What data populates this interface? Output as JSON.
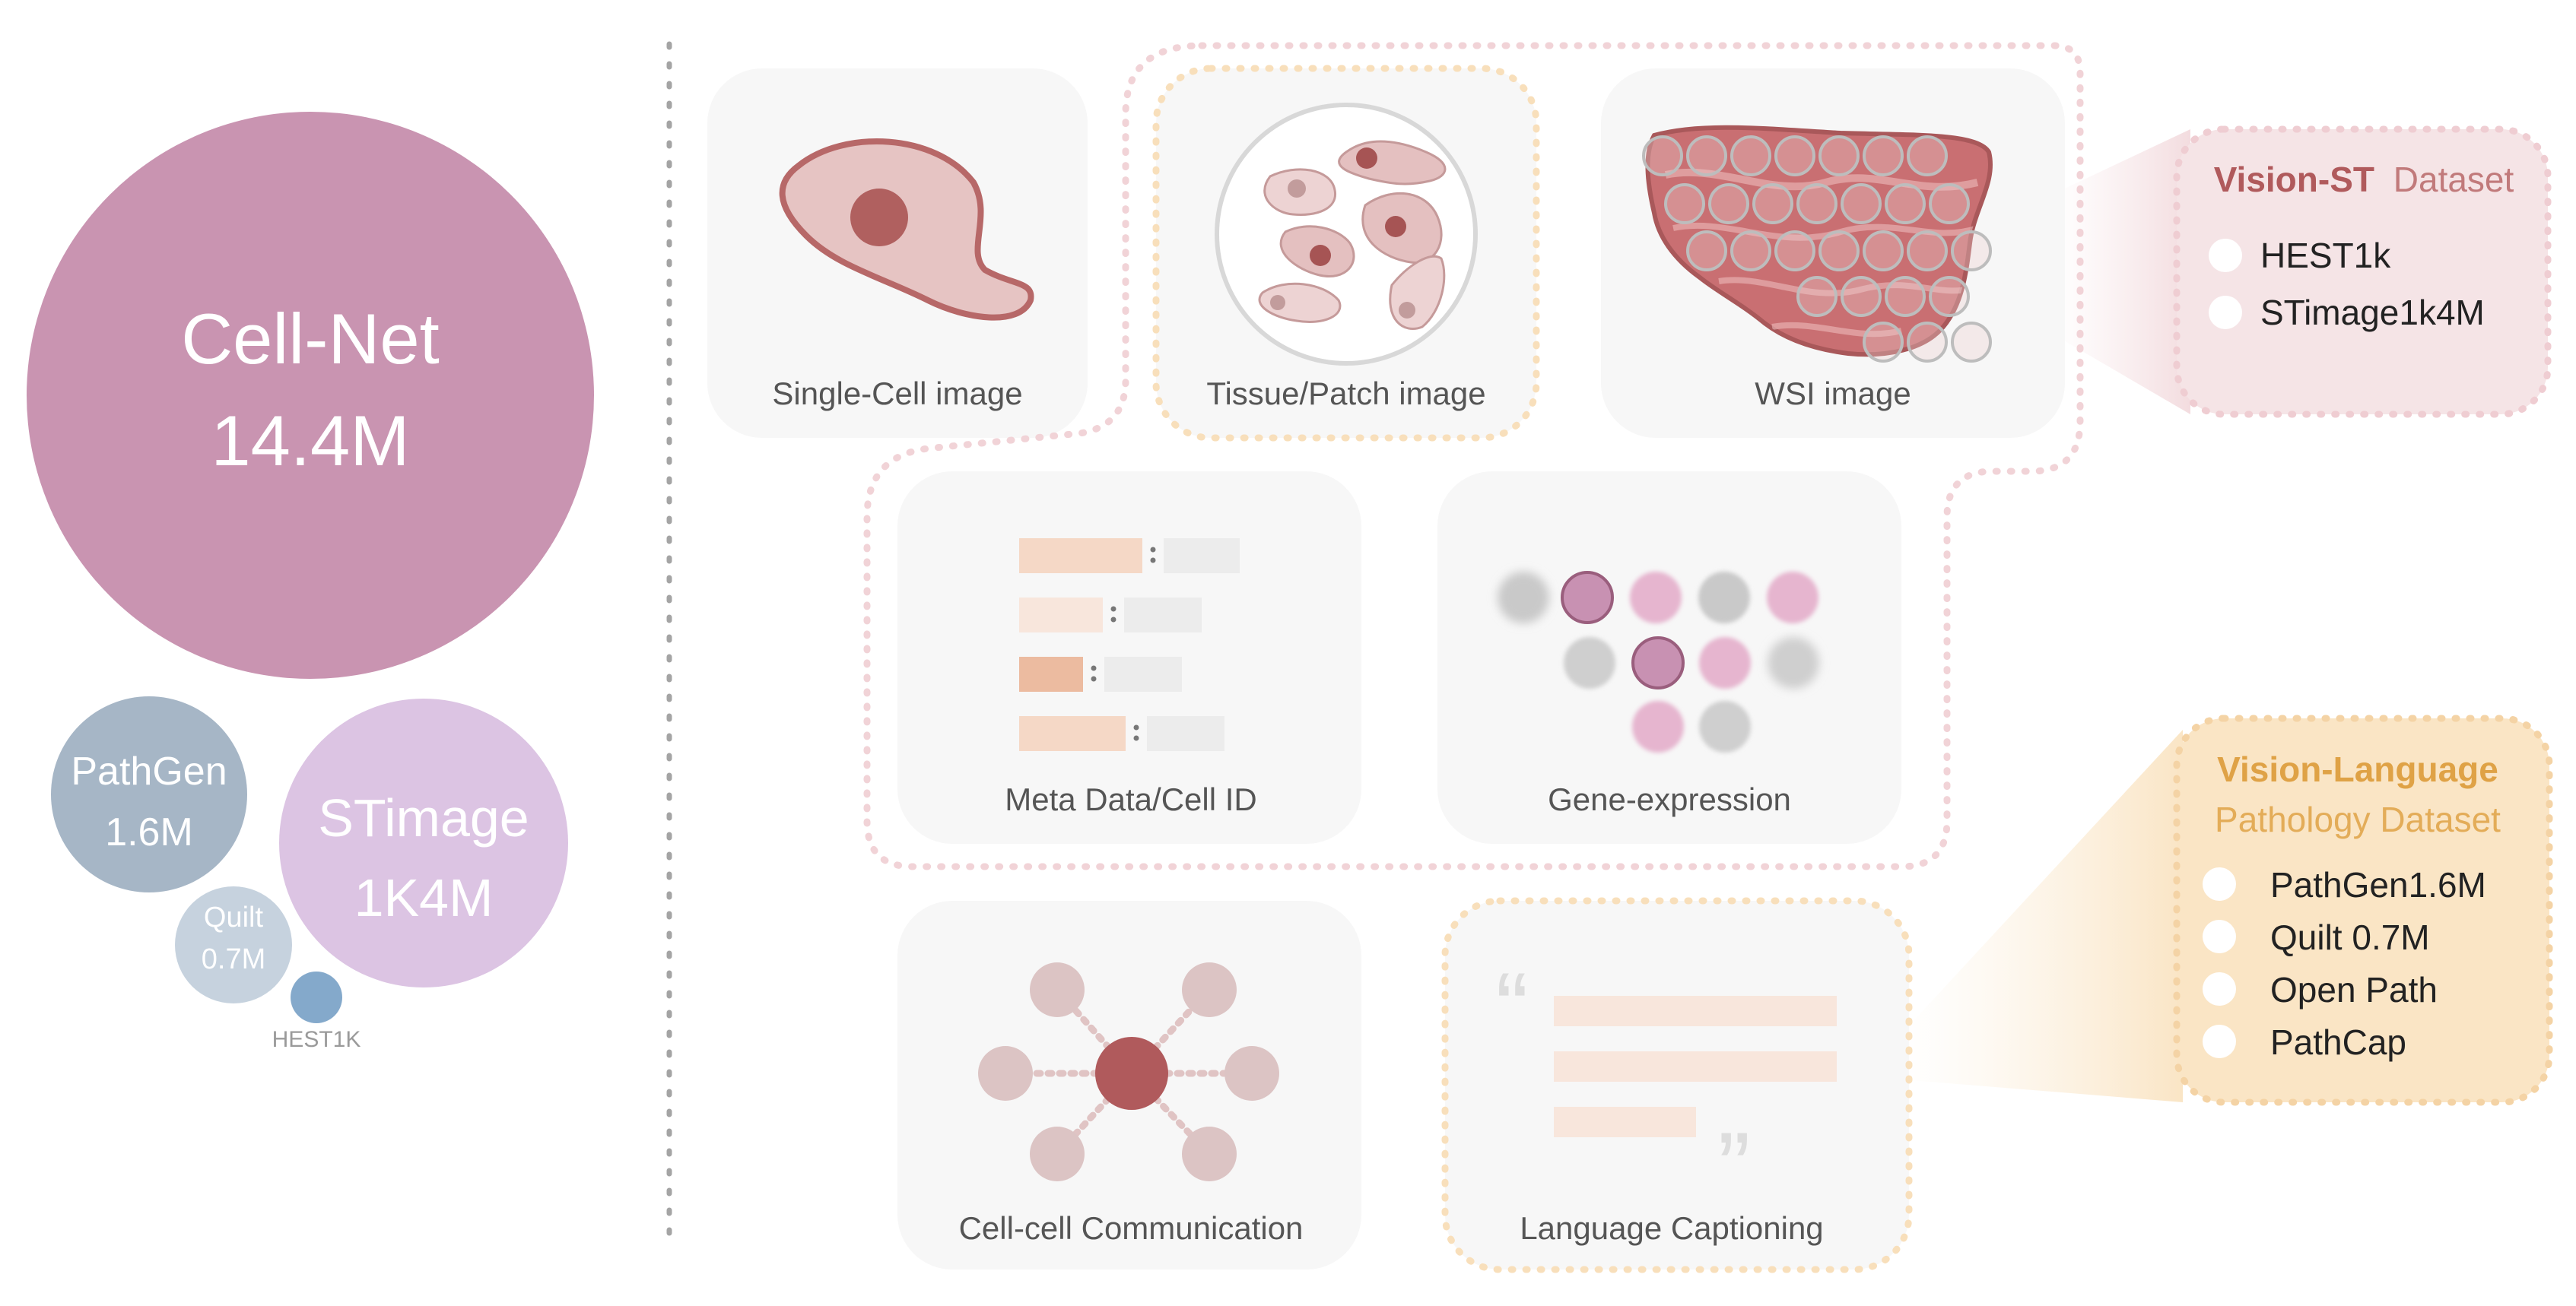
{
  "bubbles": {
    "cellnet": {
      "name": "Cell-Net",
      "value": "14.4M"
    },
    "pathgen": {
      "name": "PathGen",
      "value": "1.6M"
    },
    "stimage": {
      "name": "STimage",
      "value": "1K4M"
    },
    "quilt": {
      "name": "Quilt",
      "value": "0.7M"
    },
    "hest": {
      "name": "HEST1K"
    }
  },
  "cards": {
    "single_cell": "Single-Cell image",
    "tissue_patch": "Tissue/Patch image",
    "wsi": "WSI image",
    "meta": "Meta Data/Cell ID",
    "gene": "Gene-expression",
    "communication": "Cell-cell Communication",
    "caption": "Language Captioning"
  },
  "vision_st": {
    "title_bold": "Vision-ST",
    "title_rest": "Dataset",
    "items": [
      "HEST1k",
      "STimage1k4M"
    ]
  },
  "vision_language": {
    "title_line1": "Vision-Language",
    "title_line2": "Pathology Dataset",
    "items": [
      "PathGen1.6M",
      "Quilt 0.7M",
      "Open Path",
      "PathCap"
    ]
  },
  "colors": {
    "cellnet": "#c994b1",
    "pathgen": "#a6b6c6",
    "stimage": "#dcc4e3",
    "quilt": "#c6d2de",
    "hest": "#84a9cb",
    "vision_st": "#b05a5c",
    "vision_language": "#dfa246"
  },
  "quote_marks": {
    "open": "“",
    "close": "”"
  }
}
